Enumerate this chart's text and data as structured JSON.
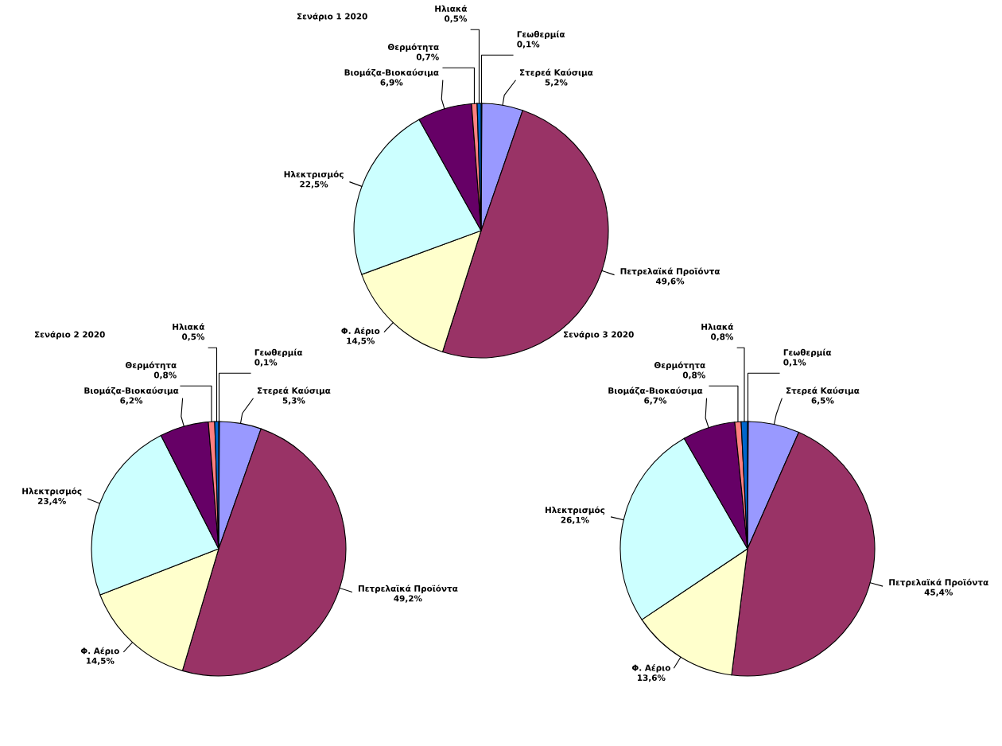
{
  "chart_data": [
    {
      "type": "pie",
      "title": "Σενάριο 1 2020",
      "categories": [
        "Γεωθερμία",
        "Στερεά Καύσιμα",
        "Πετρελαϊκά Προϊόντα",
        "Φ. Αέριο",
        "Ηλεκτρισμός",
        "Βιομάζα-Βιοκαύσιμα",
        "Θερμότητα",
        "Ηλιακά"
      ],
      "values": [
        0.1,
        5.2,
        49.6,
        14.5,
        22.5,
        6.9,
        0.7,
        0.5
      ],
      "value_labels": [
        "0,1%",
        "5,2%",
        "49,6%",
        "14,5%",
        "22,5%",
        "6,9%",
        "0,7%",
        "0,5%"
      ],
      "colors": [
        "#000080",
        "#9999ff",
        "#993366",
        "#ffffcc",
        "#ccffff",
        "#660066",
        "#ff8080",
        "#0066cc"
      ]
    },
    {
      "type": "pie",
      "title": "Σενάριο 2 2020",
      "categories": [
        "Γεωθερμία",
        "Στερεά Καύσιμα",
        "Πετρελαϊκά Προϊόντα",
        "Φ. Αέριο",
        "Ηλεκτρισμός",
        "Βιομάζα-Βιοκαύσιμα",
        "Θερμότητα",
        "Ηλιακά"
      ],
      "values": [
        0.1,
        5.3,
        49.2,
        14.5,
        23.4,
        6.2,
        0.8,
        0.5
      ],
      "value_labels": [
        "0,1%",
        "5,3%",
        "49,2%",
        "14,5%",
        "23,4%",
        "6,2%",
        "0,8%",
        "0,5%"
      ],
      "colors": [
        "#000080",
        "#9999ff",
        "#993366",
        "#ffffcc",
        "#ccffff",
        "#660066",
        "#ff8080",
        "#0066cc"
      ]
    },
    {
      "type": "pie",
      "title": "Σενάριο 3 2020",
      "categories": [
        "Γεωθερμία",
        "Στερεά Καύσιμα",
        "Πετρελαϊκά Προϊόντα",
        "Φ. Αέριο",
        "Ηλεκτρισμός",
        "Βιομάζα-Βιοκαύσιμα",
        "Θερμότητα",
        "Ηλιακά"
      ],
      "values": [
        0.1,
        6.5,
        45.4,
        13.6,
        26.1,
        6.7,
        0.8,
        0.8
      ],
      "value_labels": [
        "0,1%",
        "6,5%",
        "45,4%",
        "13,6%",
        "26,1%",
        "6,7%",
        "0,8%",
        "0,8%"
      ],
      "colors": [
        "#000080",
        "#9999ff",
        "#993366",
        "#ffffcc",
        "#ccffff",
        "#660066",
        "#ff8080",
        "#0066cc"
      ]
    }
  ]
}
